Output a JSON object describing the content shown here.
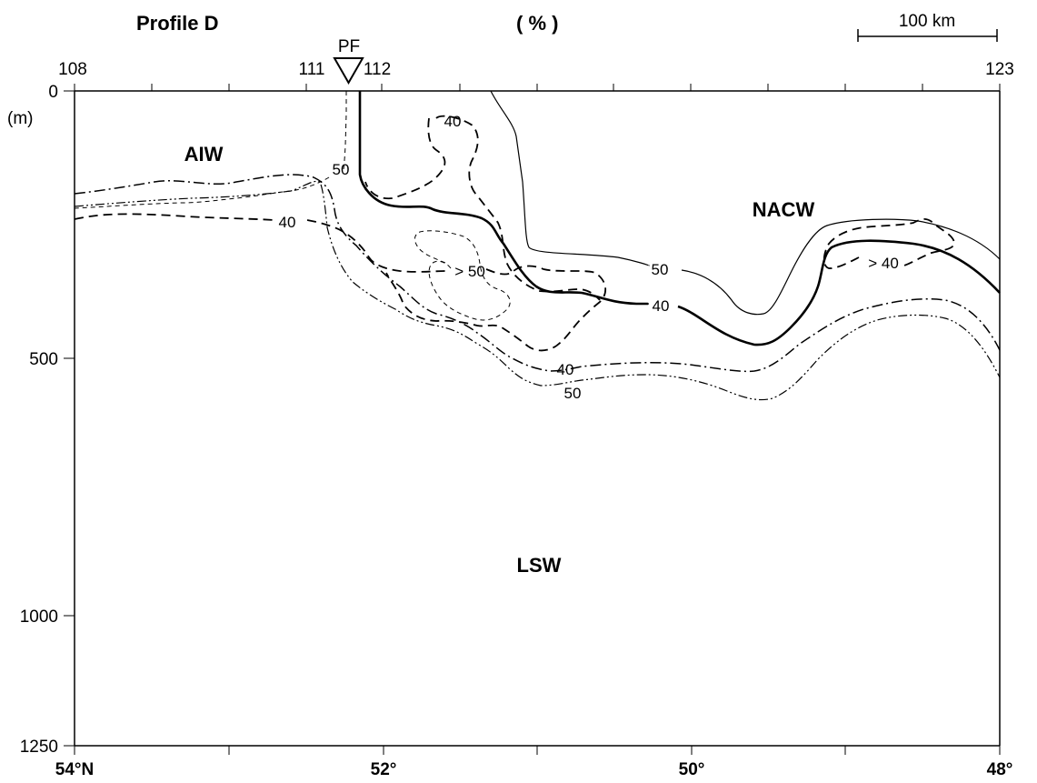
{
  "chart_data": {
    "type": "contour",
    "title": "Profile D",
    "subtitle": "( % )",
    "scale_bar_label": "100 km",
    "top_axis": {
      "tick_labels": [
        "108",
        "111",
        "112",
        "123"
      ],
      "stations": [
        108,
        111,
        112,
        123
      ],
      "front_label": "PF",
      "front_station": 111.5
    },
    "bottom_axis": {
      "tick_labels": [
        "54°N",
        "52°",
        "50°",
        "48°"
      ],
      "latitudes": [
        54,
        52,
        50,
        48
      ],
      "xlim": [
        54,
        48
      ]
    },
    "y_axis": {
      "tick_labels": [
        "0",
        "500",
        "1000",
        "1250"
      ],
      "ticks": [
        0,
        500,
        1000,
        1250
      ],
      "unit": "(m)",
      "ylim": [
        0,
        1250
      ],
      "inverted": true
    },
    "water_masses": [
      "AIW",
      "NACW",
      "LSW"
    ],
    "contour_labels": [
      "40",
      "50",
      "50",
      "40",
      "> 50",
      "50",
      "40",
      "> 40",
      "40",
      "50"
    ],
    "contours": [
      {
        "id": "c1-solid-thin",
        "label": "50",
        "points": [
          [
            52.64,
            0
          ],
          [
            52.55,
            120
          ],
          [
            52.5,
            300
          ],
          [
            52.2,
            400
          ],
          [
            51.3,
            420
          ],
          [
            50.8,
            540
          ],
          [
            50.4,
            550
          ],
          [
            50.0,
            340
          ],
          [
            49.6,
            320
          ],
          [
            49.0,
            340
          ],
          [
            48.0,
            310
          ]
        ]
      },
      {
        "id": "c2-solid-thick",
        "label": "40",
        "points": [
          [
            53.3,
            0
          ],
          [
            53.3,
            160
          ],
          [
            53.0,
            220
          ],
          [
            52.8,
            240
          ],
          [
            52.5,
            300
          ],
          [
            52.1,
            360
          ],
          [
            51.7,
            400
          ],
          [
            51.3,
            420
          ],
          [
            51.0,
            420
          ],
          [
            50.6,
            470
          ],
          [
            50.4,
            470
          ],
          [
            50.1,
            390
          ],
          [
            49.7,
            290
          ],
          [
            49.2,
            300
          ],
          [
            48.9,
            320
          ],
          [
            48.0,
            380
          ]
        ]
      },
      {
        "id": "c3-dashed",
        "label": "40",
        "points": [
          [
            52.92,
            90
          ],
          [
            52.9,
            60
          ],
          [
            52.88,
            50
          ],
          [
            52.7,
            70
          ],
          [
            52.64,
            90
          ],
          [
            52.65,
            150
          ],
          [
            52.58,
            220
          ],
          [
            52.3,
            240
          ],
          [
            52.2,
            340
          ],
          [
            51.75,
            380
          ]
        ]
      },
      {
        "id": "c4-dashed",
        "label": "40",
        "points": [
          [
            52.81,
            170
          ],
          [
            52.92,
            120
          ],
          [
            52.8,
            220
          ],
          [
            52.4,
            250
          ],
          [
            52.2,
            300
          ],
          [
            51.6,
            320
          ],
          [
            51.3,
            380
          ],
          [
            51.1,
            420
          ],
          [
            50.8,
            500
          ],
          [
            50.5,
            500
          ]
        ]
      },
      {
        "id": "c5-dashdot",
        "label": "40",
        "points": [
          [
            54,
            200
          ],
          [
            53.6,
            190
          ],
          [
            53.4,
            180
          ],
          [
            53.2,
            190
          ],
          [
            52.9,
            210
          ],
          [
            52.6,
            300
          ],
          [
            52.2,
            360
          ],
          [
            51.75,
            420
          ],
          [
            51.4,
            520
          ],
          [
            51.0,
            530
          ],
          [
            50.6,
            500
          ],
          [
            50.2,
            510
          ],
          [
            50.0,
            410
          ],
          [
            49.6,
            380
          ],
          [
            49.2,
            380
          ],
          [
            48.6,
            370
          ],
          [
            48.0,
            490
          ]
        ]
      },
      {
        "id": "c6-dashdotdot",
        "label": "50",
        "points": [
          [
            54,
            215
          ],
          [
            53.6,
            210
          ],
          [
            53.2,
            205
          ],
          [
            52.8,
            290
          ],
          [
            52.4,
            370
          ],
          [
            52.0,
            430
          ],
          [
            51.6,
            470
          ],
          [
            51.2,
            560
          ],
          [
            50.8,
            560
          ],
          [
            50.4,
            570
          ],
          [
            50.0,
            500
          ],
          [
            49.6,
            440
          ],
          [
            49.2,
            430
          ],
          [
            48.8,
            430
          ],
          [
            48.0,
            540
          ]
        ]
      },
      {
        "id": "c7-dashed-thin",
        "label": "50",
        "points": [
          [
            53.55,
            0
          ],
          [
            53.55,
            100
          ],
          [
            53.55,
            150
          ],
          [
            53.5,
            180
          ],
          [
            53.2,
            230
          ]
        ]
      },
      {
        "id": "c8-dashed-thin",
        "label": "> 50",
        "points": [
          [
            51.85,
            260
          ],
          [
            51.6,
            280
          ],
          [
            51.5,
            340
          ],
          [
            51.7,
            410
          ],
          [
            51.85,
            300
          ],
          [
            51.85,
            260
          ]
        ]
      },
      {
        "id": "c9-dashed-right",
        "label": "> 40",
        "points": [
          [
            49.2,
            330
          ],
          [
            49.1,
            300
          ],
          [
            48.8,
            270
          ],
          [
            48.6,
            250
          ],
          [
            48.3,
            260
          ],
          [
            48.5,
            320
          ],
          [
            49.0,
            345
          ],
          [
            49.2,
            330
          ]
        ]
      }
    ]
  }
}
